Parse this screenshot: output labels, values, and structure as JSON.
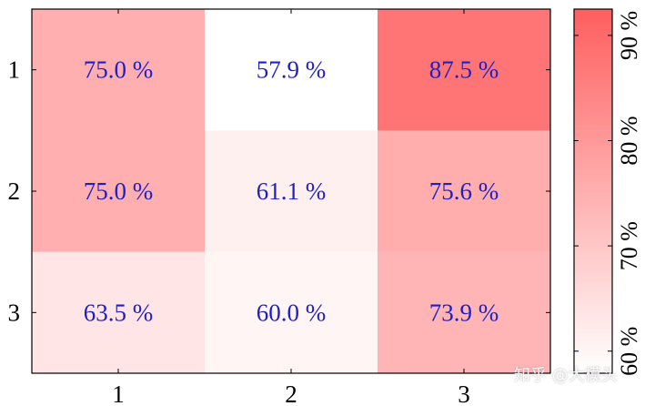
{
  "chart_data": {
    "type": "heatmap",
    "x_categories": [
      "1",
      "2",
      "3"
    ],
    "y_categories": [
      "1",
      "2",
      "3"
    ],
    "values": [
      [
        75.0,
        57.9,
        87.5
      ],
      [
        75.0,
        61.1,
        75.6
      ],
      [
        63.5,
        60.0,
        73.9
      ]
    ],
    "cell_labels": [
      [
        "75.0 %",
        "57.9 %",
        "87.5 %"
      ],
      [
        "75.0 %",
        "61.1 %",
        "75.6 %"
      ],
      [
        "63.5 %",
        "60.0 %",
        "73.9 %"
      ]
    ],
    "value_suffix": " %",
    "color_range": [
      57.9,
      92.5
    ],
    "colormap": {
      "low": "#ffffff",
      "high": "#ff5e5e"
    },
    "label_color": "#1f1fc8",
    "colorbar": {
      "ticks": [
        60,
        70,
        80,
        90
      ],
      "tick_labels": [
        "60 %",
        "70 %",
        "80 %",
        "90 %"
      ]
    },
    "title": "",
    "xlabel": "",
    "ylabel": ""
  },
  "watermark": "知乎 @大模头"
}
